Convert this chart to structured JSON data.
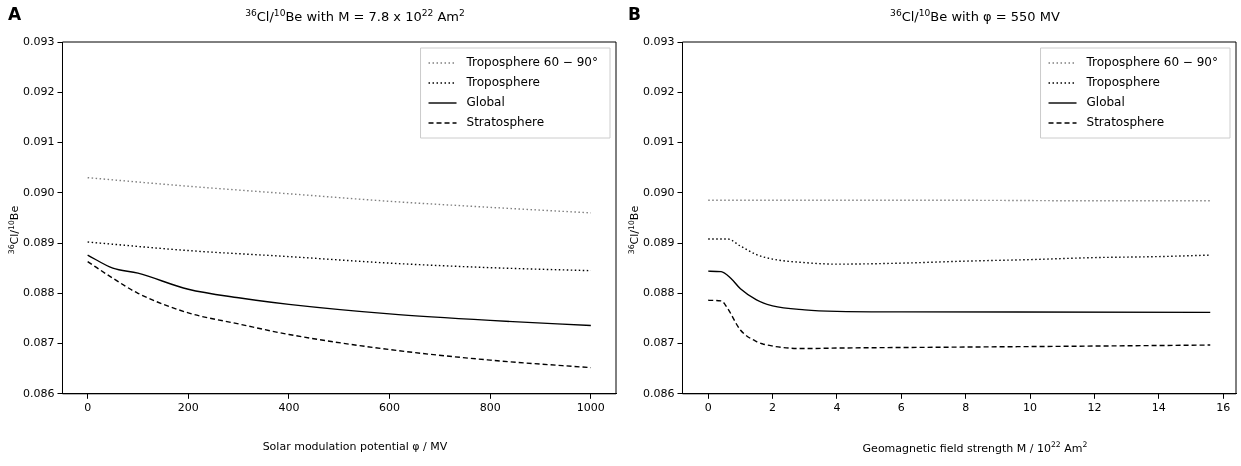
{
  "chart_data": [
    {
      "type": "line",
      "title": "$^{36}$Cl/$^{10}$Be with M = 7.8 x 10$^{22}$ Am$^{2}$",
      "xlabel": "Solar modulation potential φ / MV",
      "ylabel": "$^{36}$Cl/$^{10}$Be",
      "annotations": [
        "A"
      ],
      "legend": "top right",
      "grid": false,
      "marker": "none",
      "xlim": [
        -50,
        1050
      ],
      "xticks": [
        0,
        200,
        400,
        600,
        800,
        1000
      ],
      "ylim": [
        0.086,
        0.093
      ],
      "yticks": [
        0.086,
        0.087,
        0.088,
        0.089,
        {
          "value": 0.09,
          "label": "0.090"
        },
        0.091,
        0.092,
        0.093
      ],
      "series": [
        {
          "name": "Troposphere 60 − 90°",
          "color": "#808080",
          "line_style": "dotted",
          "x": [
            0,
            200,
            400,
            600,
            800,
            1000
          ],
          "values": [
            0.0903,
            0.09013,
            0.08998,
            0.08983,
            0.08971,
            0.0896
          ]
        },
        {
          "name": "Troposphere",
          "color": "#000000",
          "line_style": "dotted",
          "x": [
            0,
            200,
            400,
            600,
            800,
            1000
          ],
          "values": [
            0.08902,
            0.08885,
            0.08873,
            0.0886,
            0.08851,
            0.08845
          ]
        },
        {
          "name": "Global",
          "color": "#000000",
          "line_style": "solid",
          "x": [
            0,
            50,
            100,
            200,
            300,
            400,
            600,
            800,
            1000
          ],
          "values": [
            0.08876,
            0.0885,
            0.0884,
            0.08808,
            0.08791,
            0.08778,
            0.08759,
            0.08746,
            0.08736
          ]
        },
        {
          "name": "Stratosphere",
          "color": "#000000",
          "line_style": "dashed",
          "x": [
            0,
            50,
            100,
            200,
            300,
            400,
            600,
            800,
            1000
          ],
          "values": [
            0.08863,
            0.0883,
            0.088,
            0.08761,
            0.08739,
            0.08718,
            0.08688,
            0.08667,
            0.08652
          ]
        }
      ]
    },
    {
      "type": "line",
      "title": "$^{36}$Cl/$^{10}$Be with φ = 550 MV",
      "xlabel": "Geomagnetic field strength M / 10$^{22}$ Am$^{2}$",
      "ylabel": "$^{36}$Cl/$^{10}$Be",
      "annotations": [
        "B"
      ],
      "legend": "top right",
      "grid": false,
      "marker": "none",
      "xlim": [
        -0.8,
        16.4
      ],
      "xticks": [
        0,
        2,
        4,
        6,
        8,
        10,
        12,
        14,
        16
      ],
      "ylim": [
        0.086,
        0.093
      ],
      "yticks": [
        0.086,
        0.087,
        0.088,
        0.089,
        {
          "value": 0.09,
          "label": "0.090"
        },
        0.091,
        0.092,
        0.093
      ],
      "series": [
        {
          "name": "Troposphere 60 − 90°",
          "color": "#808080",
          "line_style": "dotted",
          "x": [
            0,
            4,
            8,
            12,
            15.6
          ],
          "values": [
            0.08985,
            0.08985,
            0.08985,
            0.08984,
            0.08984
          ]
        },
        {
          "name": "Troposphere",
          "color": "#000000",
          "line_style": "dotted",
          "x": [
            0,
            0.6,
            1,
            1.5,
            2,
            3,
            4,
            6,
            8,
            10,
            12,
            14,
            15.6
          ],
          "values": [
            0.08908,
            0.08908,
            0.08894,
            0.08877,
            0.08868,
            0.08861,
            0.08858,
            0.0886,
            0.08864,
            0.08867,
            0.08871,
            0.08873,
            0.08876
          ]
        },
        {
          "name": "Global",
          "color": "#000000",
          "line_style": "solid",
          "x": [
            0,
            0.4,
            0.7,
            1,
            1.5,
            2,
            3,
            4,
            6,
            15.6
          ],
          "values": [
            0.08844,
            0.08843,
            0.0883,
            0.08809,
            0.08787,
            0.08775,
            0.08767,
            0.08764,
            0.08763,
            0.08762
          ]
        },
        {
          "name": "Stratosphere",
          "color": "#000000",
          "line_style": "dashed",
          "x": [
            0,
            0.4,
            0.6,
            1,
            1.5,
            2,
            3,
            4,
            8,
            12,
            15.6
          ],
          "values": [
            0.08786,
            0.08785,
            0.0877,
            0.08727,
            0.08704,
            0.08695,
            0.0869,
            0.08691,
            0.08693,
            0.08695,
            0.08697
          ]
        }
      ]
    }
  ]
}
